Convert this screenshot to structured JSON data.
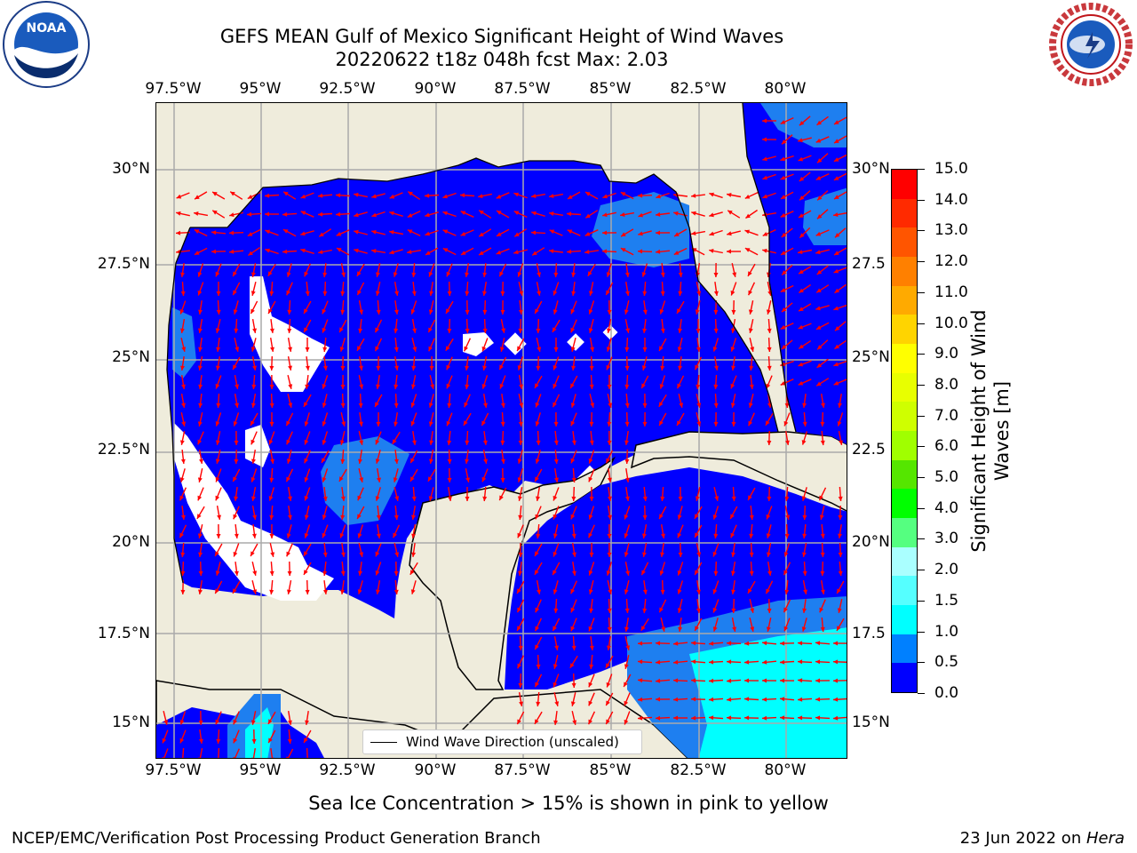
{
  "header": {
    "title_line1": "GEFS MEAN Gulf of Mexico Significant Height of Wind Waves",
    "title_line2": "20220622 t18z 048h fcst   Max: 2.03"
  },
  "logos": {
    "left": {
      "name": "noaa-logo",
      "text": "NOAA"
    },
    "right": {
      "name": "nws-logo",
      "text": "NATIONAL WEATHER SERVICE"
    }
  },
  "map": {
    "lon_labels": [
      "97.5°W",
      "95°W",
      "92.5°W",
      "90°W",
      "87.5°W",
      "85°W",
      "82.5°W",
      "80°W"
    ],
    "lat_labels_left": [
      "30°N",
      "27.5°N",
      "25°N",
      "22.5°N",
      "20°N",
      "17.5°N",
      "15°N"
    ],
    "lat_labels_right": [
      "30°N",
      "27.5",
      "25°N",
      "22.5",
      "20°N",
      "17.5",
      "15°N"
    ],
    "legend_label": "Wind Wave Direction (unscaled)",
    "colors": {
      "land": "#efecdc",
      "wave_0_0p5": "#0000ff",
      "wave_0p5_1": "#1e7ff0",
      "wave_1_1p5": "#00ffff",
      "arrow": "#ff0000",
      "grid": "#aaaaaa"
    }
  },
  "colorbar": {
    "label": "Significant Height of Wind Waves [m]",
    "label_line1": "Significant Height of Wind",
    "label_line2": "Waves [m]",
    "ticks": [
      "15.0",
      "14.0",
      "13.0",
      "12.0",
      "11.0",
      "10.0",
      "9.0",
      "8.0",
      "7.0",
      "6.0",
      "5.0",
      "4.0",
      "3.0",
      "2.0",
      "1.5",
      "1.0",
      "0.5",
      "0.0"
    ],
    "colors_top_to_bottom": [
      "#ff0000",
      "#ff2a00",
      "#ff5500",
      "#ff8000",
      "#ffaa00",
      "#ffd400",
      "#ffff00",
      "#e8ff00",
      "#cfff00",
      "#a0ff00",
      "#55e600",
      "#00ff00",
      "#55ff80",
      "#aaffff",
      "#55ffff",
      "#00ffff",
      "#0080ff",
      "#0000ff"
    ]
  },
  "note": "Sea Ice Concentration > 15% is shown in pink to yellow",
  "footer": {
    "left": "NCEP/EMC/Verification Post Processing Product Generation Branch",
    "right_prefix": "23 Jun 2022 on ",
    "right_host": "Hera"
  }
}
